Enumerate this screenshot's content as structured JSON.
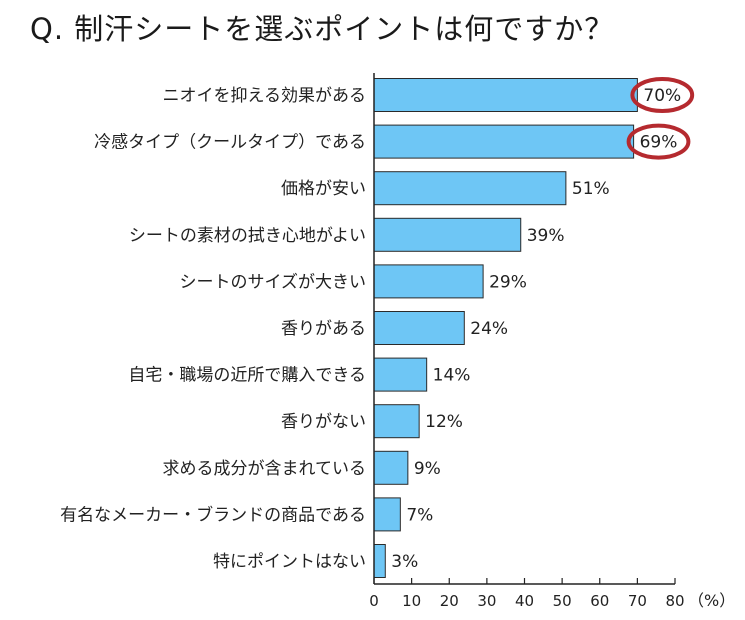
{
  "title": "Q. 制汗シートを選ぶポイントは何ですか？",
  "chart_data": {
    "type": "bar",
    "orientation": "horizontal",
    "title": "Q. 制汗シートを選ぶポイントは何ですか？",
    "xlabel": "",
    "ylabel": "",
    "unit": "（%）",
    "xlim": [
      0,
      80
    ],
    "xticks": [
      0,
      10,
      20,
      30,
      40,
      50,
      60,
      70,
      80
    ],
    "bar_color": "#6ec6f5",
    "highlight_color": "#b52a2f",
    "grid": false,
    "categories": [
      "ニオイを抑える効果がある",
      "冷感タイプ（クールタイプ）である",
      "価格が安い",
      "シートの素材の拭き心地がよい",
      "シートのサイズが大きい",
      "香りがある",
      "自宅・職場の近所で購入できる",
      "香りがない",
      "求める成分が含まれている",
      "有名なメーカー・ブランドの商品である",
      "特にポイントはない"
    ],
    "values": [
      70,
      69,
      51,
      39,
      29,
      24,
      14,
      12,
      9,
      7,
      3
    ],
    "value_labels": [
      "70%",
      "69%",
      "51%",
      "39%",
      "29%",
      "24%",
      "14%",
      "12%",
      "9%",
      "7%",
      "3%"
    ],
    "highlighted": [
      0,
      1
    ]
  }
}
